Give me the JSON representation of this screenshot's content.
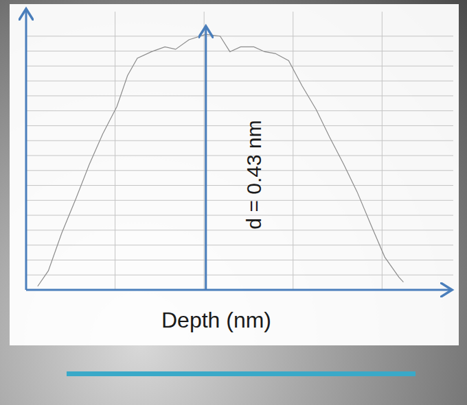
{
  "chart_data": {
    "type": "line",
    "x_label": "Depth (nm)",
    "annotation": "d = 0.43 nm",
    "x": [
      0.13,
      0.25,
      0.4,
      0.56,
      0.71,
      0.86,
      1.02,
      1.14,
      1.25,
      1.41,
      1.56,
      1.68,
      1.83,
      2.02,
      2.18,
      2.29,
      2.41,
      2.56,
      2.68,
      2.8,
      2.95,
      3.1,
      3.26,
      3.41,
      3.57,
      3.72,
      3.88,
      4.03,
      4.19,
      4.24
    ],
    "values": [
      0.006,
      0.032,
      0.095,
      0.153,
      0.21,
      0.261,
      0.307,
      0.359,
      0.388,
      0.399,
      0.407,
      0.403,
      0.419,
      0.428,
      0.425,
      0.399,
      0.407,
      0.407,
      0.399,
      0.396,
      0.384,
      0.342,
      0.302,
      0.256,
      0.21,
      0.164,
      0.107,
      0.055,
      0.021,
      0.013
    ],
    "color": "#8c8c8c",
    "xlim": [
      0,
      4.8
    ],
    "ylim": [
      0,
      0.45
    ],
    "xticks": [
      1,
      2,
      3,
      4
    ],
    "yticks": [
      0.025,
      0.05,
      0.075,
      0.1,
      0.125,
      0.15,
      0.175,
      0.2,
      0.225,
      0.25,
      0.275,
      0.3,
      0.325,
      0.35,
      0.375,
      0.4,
      0.425
    ],
    "grid": true,
    "tick_labels": false
  }
}
